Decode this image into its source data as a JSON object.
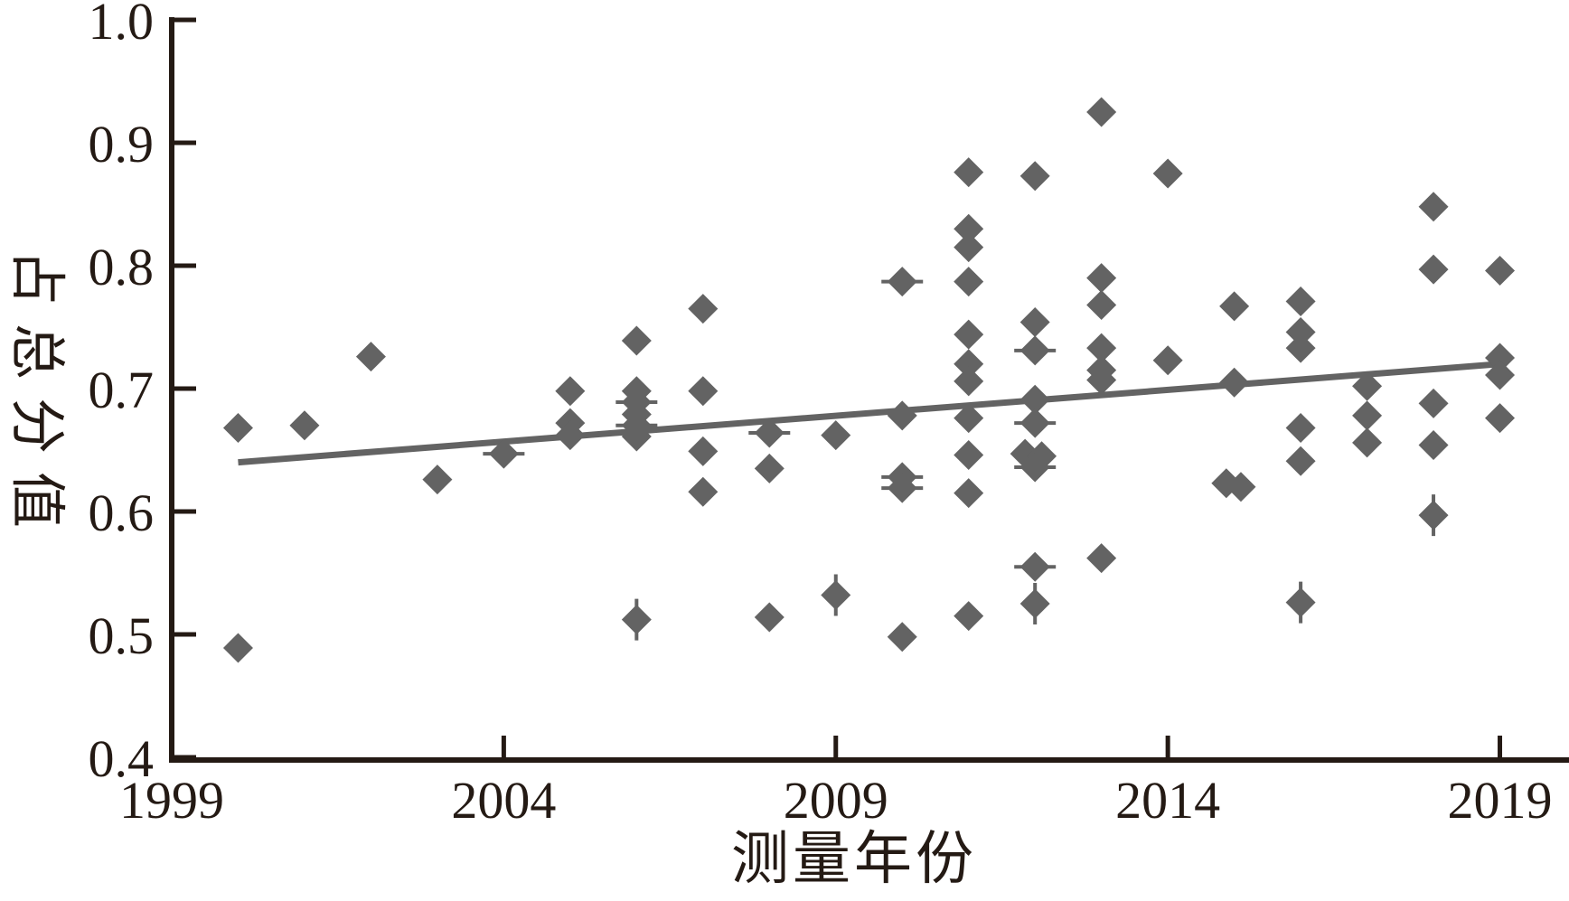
{
  "figure": {
    "background": "#ffffff",
    "axis_color": "#241a14",
    "marker_color": "#636363"
  },
  "chart_data": {
    "type": "scatter",
    "title": "",
    "xlabel": "测量年份",
    "ylabel": "占总分值",
    "xlim": [
      1999,
      2020.0
    ],
    "ylim": [
      0.4,
      1.0
    ],
    "grid": false,
    "legend": "none",
    "xticks": {
      "values": [
        1999,
        2004,
        2009,
        2014,
        2019
      ],
      "labels": [
        "1999",
        "2004",
        "2009",
        "2014",
        "2019"
      ]
    },
    "yticks": {
      "values": [
        0.4,
        0.5,
        0.6,
        0.7,
        0.8,
        0.9,
        1.0
      ],
      "labels": [
        "0.4",
        "0.5",
        "0.6",
        "0.7",
        "0.8",
        "0.9",
        "1.0"
      ]
    },
    "marker": {
      "shape": "diamond",
      "color": "#636363",
      "half_diagonal": 16.5
    },
    "trend_line": {
      "x1": 2000.0,
      "y1": 0.64,
      "x2": 2019.0,
      "y2": 0.72,
      "color": "#636363",
      "width": 7
    },
    "points": [
      {
        "x": 2000,
        "y": 0.668
      },
      {
        "x": 2000,
        "y": 0.489
      },
      {
        "x": 2001,
        "y": 0.67
      },
      {
        "x": 2002,
        "y": 0.726
      },
      {
        "x": 2003,
        "y": 0.626
      },
      {
        "x": 2004,
        "y": 0.647,
        "w": "h"
      },
      {
        "x": 2005,
        "y": 0.698
      },
      {
        "x": 2005,
        "y": 0.672
      },
      {
        "x": 2005,
        "y": 0.662
      },
      {
        "x": 2006,
        "y": 0.739
      },
      {
        "x": 2006,
        "y": 0.698
      },
      {
        "x": 2006,
        "y": 0.689,
        "w": "h"
      },
      {
        "x": 2006,
        "y": 0.679
      },
      {
        "x": 2006,
        "y": 0.67,
        "w": "h"
      },
      {
        "x": 2006,
        "y": 0.661
      },
      {
        "x": 2006,
        "y": 0.512,
        "w": "v"
      },
      {
        "x": 2007,
        "y": 0.765
      },
      {
        "x": 2007,
        "y": 0.698
      },
      {
        "x": 2007,
        "y": 0.649
      },
      {
        "x": 2007,
        "y": 0.616
      },
      {
        "x": 2008,
        "y": 0.664,
        "w": "h"
      },
      {
        "x": 2008,
        "y": 0.635
      },
      {
        "x": 2008,
        "y": 0.514
      },
      {
        "x": 2009,
        "y": 0.662
      },
      {
        "x": 2009,
        "y": 0.532,
        "w": "v"
      },
      {
        "x": 2010,
        "y": 0.787,
        "w": "h"
      },
      {
        "x": 2010,
        "y": 0.678
      },
      {
        "x": 2010,
        "y": 0.628,
        "w": "h"
      },
      {
        "x": 2010,
        "y": 0.619,
        "w": "h"
      },
      {
        "x": 2010,
        "y": 0.498
      },
      {
        "x": 2011,
        "y": 0.876
      },
      {
        "x": 2011,
        "y": 0.83
      },
      {
        "x": 2011,
        "y": 0.815
      },
      {
        "x": 2011,
        "y": 0.787
      },
      {
        "x": 2011,
        "y": 0.744
      },
      {
        "x": 2011,
        "y": 0.72
      },
      {
        "x": 2011,
        "y": 0.706
      },
      {
        "x": 2011,
        "y": 0.676
      },
      {
        "x": 2011,
        "y": 0.646
      },
      {
        "x": 2011,
        "y": 0.615
      },
      {
        "x": 2011,
        "y": 0.515
      },
      {
        "x": 2012,
        "y": 0.873
      },
      {
        "x": 2012,
        "y": 0.754
      },
      {
        "x": 2012,
        "y": 0.731,
        "w": "h"
      },
      {
        "x": 2012,
        "y": 0.691
      },
      {
        "x": 2012,
        "y": 0.672,
        "w": "h"
      },
      {
        "x": 2011.85,
        "y": 0.647
      },
      {
        "x": 2012.1,
        "y": 0.645
      },
      {
        "x": 2012,
        "y": 0.636,
        "w": "h"
      },
      {
        "x": 2012,
        "y": 0.555,
        "w": "h"
      },
      {
        "x": 2012,
        "y": 0.525,
        "w": "v"
      },
      {
        "x": 2013,
        "y": 0.925
      },
      {
        "x": 2013,
        "y": 0.79
      },
      {
        "x": 2013,
        "y": 0.768
      },
      {
        "x": 2013,
        "y": 0.733
      },
      {
        "x": 2013,
        "y": 0.715
      },
      {
        "x": 2013,
        "y": 0.707
      },
      {
        "x": 2013,
        "y": 0.562
      },
      {
        "x": 2014,
        "y": 0.875
      },
      {
        "x": 2014,
        "y": 0.723
      },
      {
        "x": 2015,
        "y": 0.767
      },
      {
        "x": 2015,
        "y": 0.705
      },
      {
        "x": 2014.88,
        "y": 0.623
      },
      {
        "x": 2015.1,
        "y": 0.62
      },
      {
        "x": 2016,
        "y": 0.771
      },
      {
        "x": 2016,
        "y": 0.746
      },
      {
        "x": 2016,
        "y": 0.733
      },
      {
        "x": 2016,
        "y": 0.668
      },
      {
        "x": 2016,
        "y": 0.641
      },
      {
        "x": 2016,
        "y": 0.526,
        "w": "v"
      },
      {
        "x": 2017,
        "y": 0.702
      },
      {
        "x": 2017,
        "y": 0.678
      },
      {
        "x": 2017,
        "y": 0.656
      },
      {
        "x": 2018,
        "y": 0.848
      },
      {
        "x": 2018,
        "y": 0.797
      },
      {
        "x": 2018,
        "y": 0.688
      },
      {
        "x": 2018,
        "y": 0.654
      },
      {
        "x": 2018,
        "y": 0.597,
        "w": "v"
      },
      {
        "x": 2019,
        "y": 0.796
      },
      {
        "x": 2019,
        "y": 0.725
      },
      {
        "x": 2019,
        "y": 0.711
      },
      {
        "x": 2019,
        "y": 0.676
      }
    ]
  }
}
